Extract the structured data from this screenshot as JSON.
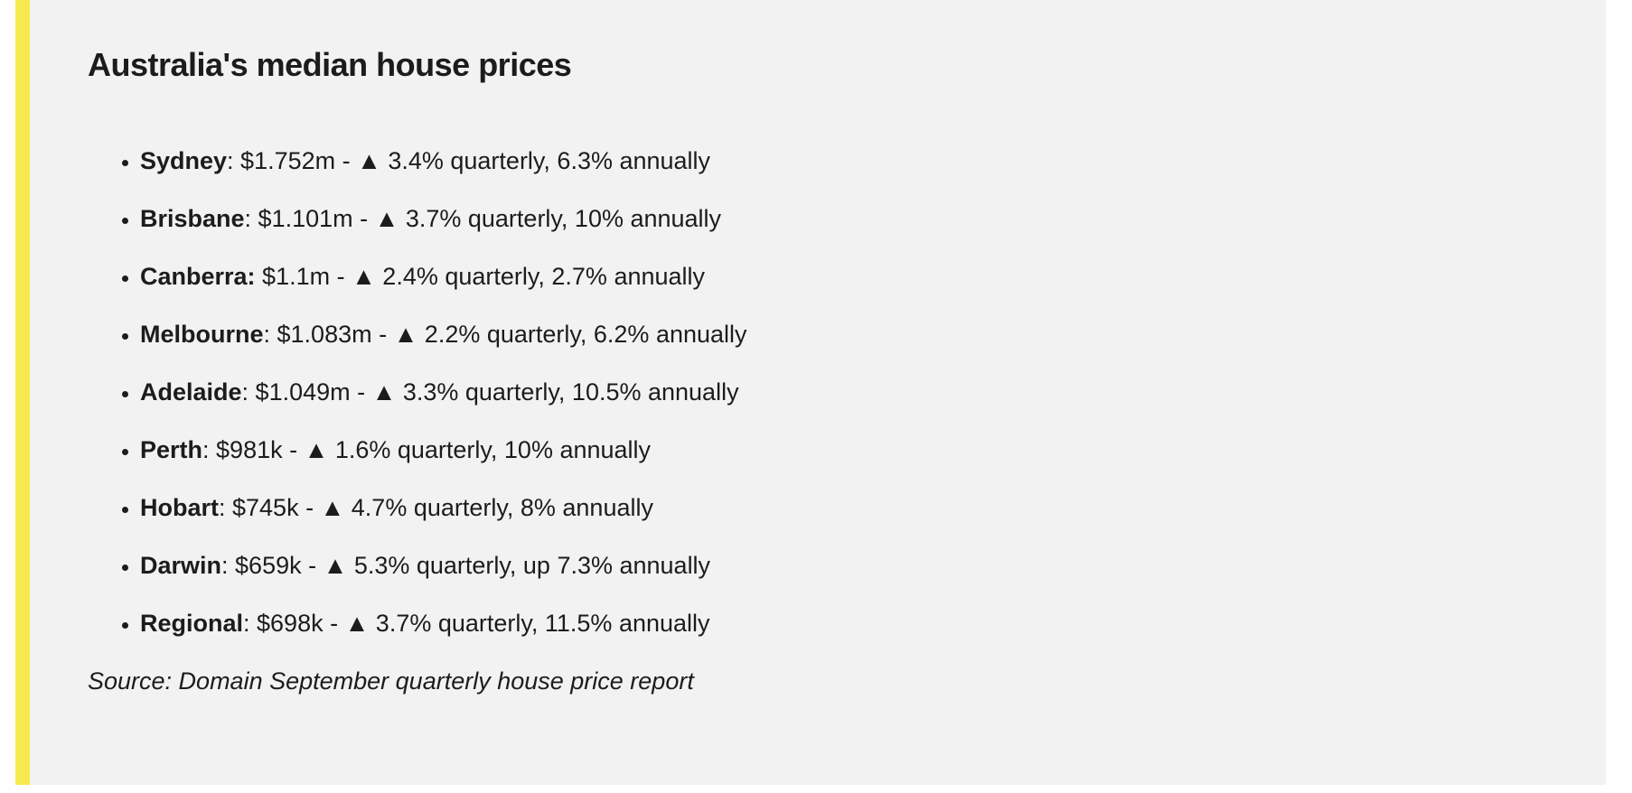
{
  "callout": {
    "title": "Australia's median house prices",
    "items": [
      {
        "label": "Sydney",
        "rest": ": $1.752m - ▲ 3.4% quarterly, 6.3% annually"
      },
      {
        "label": "Brisbane",
        "rest": ": $1.101m - ▲ 3.7% quarterly, 10% annually"
      },
      {
        "label": "Canberra:",
        "rest": " $1.1m - ▲ 2.4% quarterly, 2.7% annually"
      },
      {
        "label": "Melbourne",
        "rest": ": $1.083m - ▲ 2.2% quarterly, 6.2% annually"
      },
      {
        "label": "Adelaide",
        "rest": ": $1.049m - ▲ 3.3% quarterly, 10.5% annually"
      },
      {
        "label": "Perth",
        "rest": ": $981k - ▲ 1.6% quarterly, 10% annually"
      },
      {
        "label": "Hobart",
        "rest": ": $745k - ▲ 4.7% quarterly, 8% annually"
      },
      {
        "label": "Darwin",
        "rest": ": $659k - ▲ 5.3% quarterly, up 7.3% annually"
      },
      {
        "label": "Regional",
        "rest": ": $698k - ▲ 3.7% quarterly, 11.5% annually"
      }
    ],
    "source": "Source: Domain September quarterly house price report",
    "colors": {
      "accent_bar": "#f5e94f",
      "panel_background": "#f2f2f3",
      "text": "#1c1c1c"
    }
  }
}
